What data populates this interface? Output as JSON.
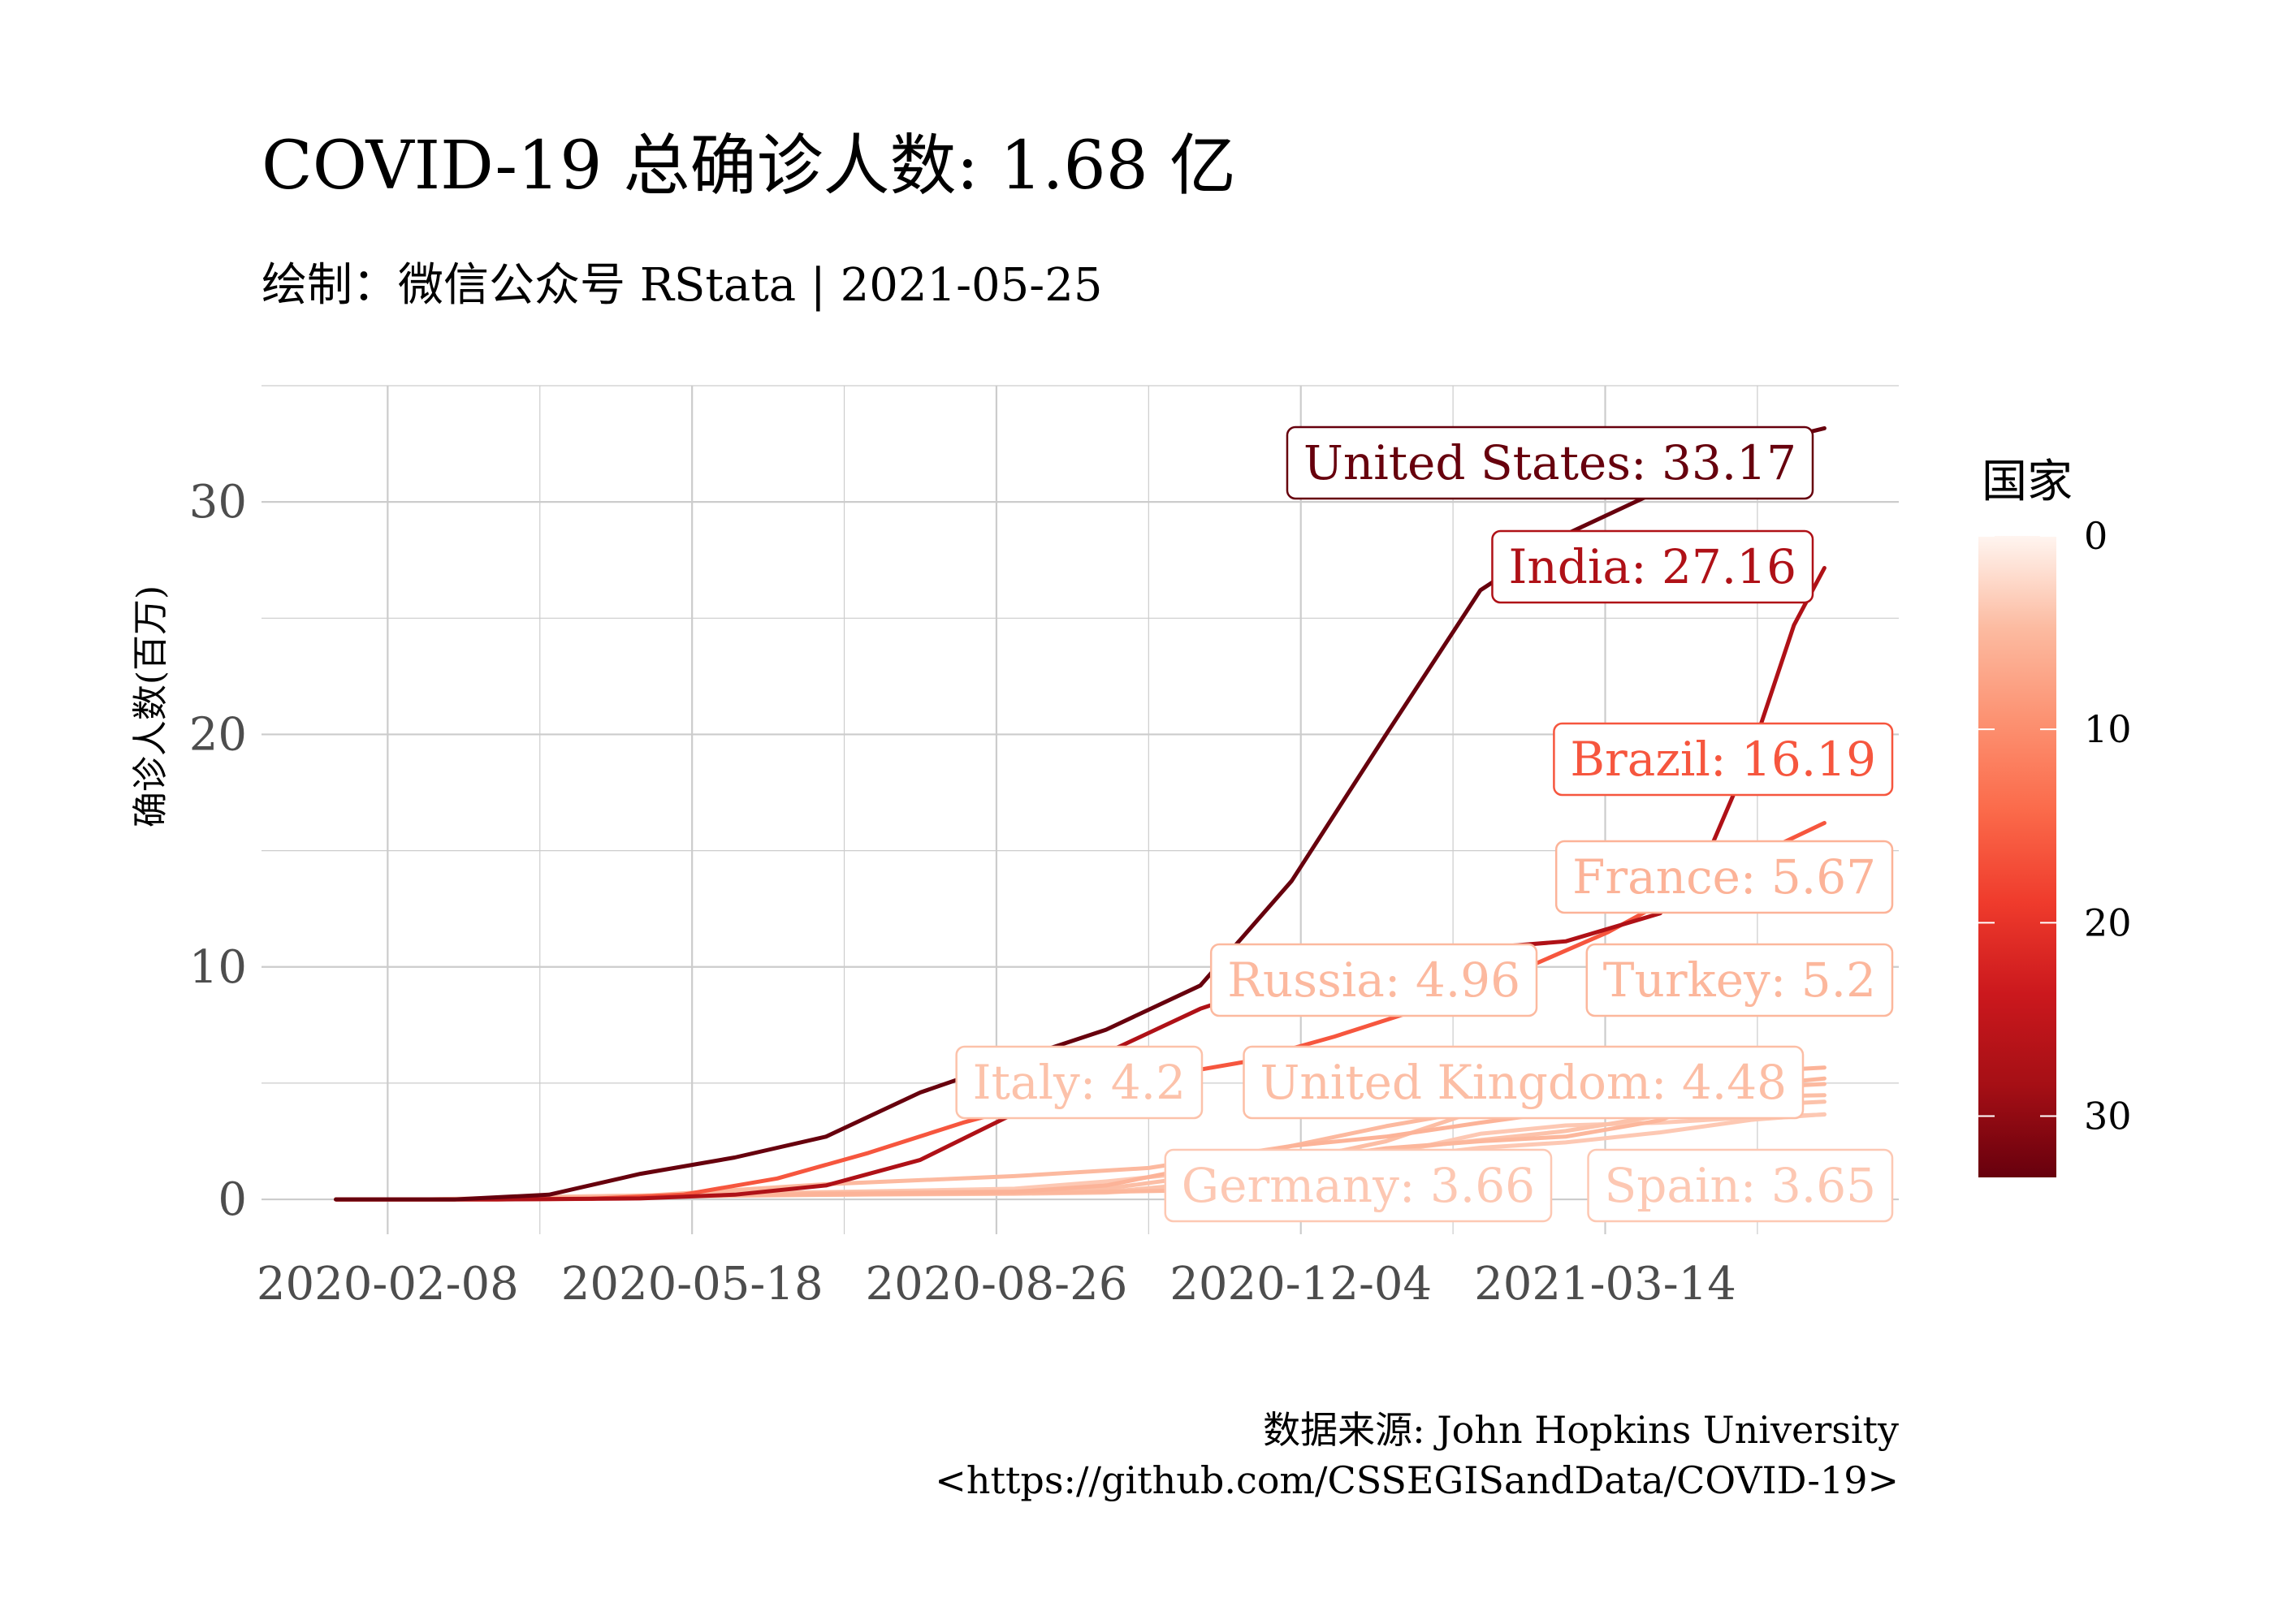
{
  "chart_data": {
    "type": "line",
    "title": "COVID-19 总确诊人数: 1.68 亿",
    "subtitle": "绘制：微信公众号 RStata | 2021-05-25",
    "xlabel": "",
    "ylabel": "确诊人数(百万)",
    "caption_line1": "数据来源: John Hopkins University",
    "caption_line2": "<https://github.com/CSSEGISandData/COVID-19>",
    "x_range": [
      "2020-01-22",
      "2021-05-25"
    ],
    "ylim": [
      -1.5,
      35
    ],
    "x_ticks": [
      "2020-02-08",
      "2020-05-18",
      "2020-08-26",
      "2020-12-04",
      "2021-03-14"
    ],
    "y_ticks": [
      0,
      10,
      20,
      30
    ],
    "grid": true,
    "legend": {
      "title": "国家",
      "position": "right",
      "type": "colorbar",
      "range": [
        0,
        33.17
      ],
      "ticks": [
        0,
        10,
        20,
        30
      ],
      "colors": [
        "#fff5f0",
        "#fcbba1",
        "#fc9272",
        "#fb6a4a",
        "#ef3b2c",
        "#cb181d",
        "#a50f15",
        "#67000d"
      ]
    },
    "series": [
      {
        "name": "United States",
        "label": "United States: 33.17",
        "final": 33.17,
        "label_pos": [
          1400000000.0,
          30.9
        ],
        "points": [
          [
            "2020-01-22",
            0
          ],
          [
            "2020-03-01",
            0.0001
          ],
          [
            "2020-04-01",
            0.2
          ],
          [
            "2020-05-01",
            1.1
          ],
          [
            "2020-06-01",
            1.8
          ],
          [
            "2020-07-01",
            2.7
          ],
          [
            "2020-08-01",
            4.6
          ],
          [
            "2020-09-01",
            6.0
          ],
          [
            "2020-10-01",
            7.3
          ],
          [
            "2020-11-01",
            9.2
          ],
          [
            "2020-12-01",
            13.7
          ],
          [
            "2021-01-01",
            20.0
          ],
          [
            "2021-02-01",
            26.2
          ],
          [
            "2021-03-01",
            28.6
          ],
          [
            "2021-04-01",
            30.5
          ],
          [
            "2021-05-01",
            32.4
          ],
          [
            "2021-05-25",
            33.17
          ]
        ]
      },
      {
        "name": "India",
        "label": "India: 27.16",
        "final": 27.16,
        "label_pos": [
          1400000000.0,
          26.6
        ],
        "points": [
          [
            "2020-01-22",
            0
          ],
          [
            "2020-03-15",
            0
          ],
          [
            "2020-05-01",
            0.04
          ],
          [
            "2020-06-01",
            0.2
          ],
          [
            "2020-07-01",
            0.6
          ],
          [
            "2020-08-01",
            1.7
          ],
          [
            "2020-09-01",
            3.7
          ],
          [
            "2020-10-01",
            6.3
          ],
          [
            "2020-11-01",
            8.2
          ],
          [
            "2020-12-01",
            9.5
          ],
          [
            "2021-01-01",
            10.3
          ],
          [
            "2021-02-01",
            10.8
          ],
          [
            "2021-03-01",
            11.1
          ],
          [
            "2021-04-01",
            12.3
          ],
          [
            "2021-04-15",
            14.3
          ],
          [
            "2021-05-01",
            19.2
          ],
          [
            "2021-05-15",
            24.7
          ],
          [
            "2021-05-25",
            27.16
          ]
        ]
      },
      {
        "name": "Brazil",
        "label": "Brazil: 16.19",
        "final": 16.19,
        "label_pos": [
          1400000000.0,
          18.5
        ],
        "points": [
          [
            "2020-01-22",
            0
          ],
          [
            "2020-03-15",
            0
          ],
          [
            "2020-04-15",
            0.03
          ],
          [
            "2020-05-15",
            0.2
          ],
          [
            "2020-06-15",
            0.9
          ],
          [
            "2020-07-15",
            2.0
          ],
          [
            "2020-08-15",
            3.3
          ],
          [
            "2020-09-15",
            4.4
          ],
          [
            "2020-10-15",
            5.2
          ],
          [
            "2020-11-15",
            5.9
          ],
          [
            "2020-12-15",
            7.0
          ],
          [
            "2021-01-15",
            8.3
          ],
          [
            "2021-02-15",
            9.9
          ],
          [
            "2021-03-15",
            11.5
          ],
          [
            "2021-04-15",
            13.7
          ],
          [
            "2021-05-25",
            16.19
          ]
        ]
      },
      {
        "name": "France",
        "label": "France: 5.67",
        "final": 5.67,
        "label_pos": [
          1400000000.0,
          13.5
        ],
        "points": [
          [
            "2020-01-22",
            0
          ],
          [
            "2020-03-01",
            0.0001
          ],
          [
            "2020-04-01",
            0.06
          ],
          [
            "2020-06-01",
            0.19
          ],
          [
            "2020-09-01",
            0.32
          ],
          [
            "2020-10-01",
            0.6
          ],
          [
            "2020-11-01",
            1.4
          ],
          [
            "2020-12-01",
            2.3
          ],
          [
            "2021-01-01",
            2.7
          ],
          [
            "2021-02-01",
            3.3
          ],
          [
            "2021-03-01",
            3.8
          ],
          [
            "2021-04-01",
            4.7
          ],
          [
            "2021-05-01",
            5.5
          ],
          [
            "2021-05-25",
            5.67
          ]
        ]
      },
      {
        "name": "Turkey",
        "label": "Turkey: 5.2",
        "final": 5.2,
        "label_pos": [
          1400000000.0,
          9.1
        ],
        "points": [
          [
            "2020-01-22",
            0
          ],
          [
            "2020-03-15",
            0
          ],
          [
            "2020-04-01",
            0.015
          ],
          [
            "2020-06-01",
            0.16
          ],
          [
            "2020-09-01",
            0.27
          ],
          [
            "2020-11-01",
            0.39
          ],
          [
            "2020-11-26",
            0.45
          ],
          [
            "2020-12-10",
            1.8
          ],
          [
            "2021-01-01",
            2.2
          ],
          [
            "2021-02-01",
            2.5
          ],
          [
            "2021-03-01",
            2.7
          ],
          [
            "2021-04-01",
            3.4
          ],
          [
            "2021-05-01",
            4.9
          ],
          [
            "2021-05-25",
            5.2
          ]
        ]
      },
      {
        "name": "Russia",
        "label": "Russia: 4.96",
        "final": 4.96,
        "label_pos": [
          1400000000.0,
          9.1
        ],
        "points": [
          [
            "2020-01-22",
            0
          ],
          [
            "2020-03-15",
            0
          ],
          [
            "2020-04-15",
            0.02
          ],
          [
            "2020-05-15",
            0.26
          ],
          [
            "2020-07-01",
            0.65
          ],
          [
            "2020-09-01",
            1.0
          ],
          [
            "2020-10-15",
            1.35
          ],
          [
            "2020-12-01",
            2.3
          ],
          [
            "2021-01-01",
            3.15
          ],
          [
            "2021-02-01",
            3.85
          ],
          [
            "2021-03-01",
            4.26
          ],
          [
            "2021-04-01",
            4.56
          ],
          [
            "2021-05-01",
            4.8
          ],
          [
            "2021-05-25",
            4.96
          ]
        ]
      },
      {
        "name": "United Kingdom",
        "label": "United Kingdom: 4.48",
        "final": 4.48,
        "label_pos": [
          1400000000.0,
          4.8
        ],
        "points": [
          [
            "2020-01-22",
            0
          ],
          [
            "2020-03-01",
            0.0001
          ],
          [
            "2020-04-01",
            0.03
          ],
          [
            "2020-06-01",
            0.28
          ],
          [
            "2020-09-01",
            0.34
          ],
          [
            "2020-10-01",
            0.46
          ],
          [
            "2020-11-01",
            1.0
          ],
          [
            "2020-12-01",
            1.65
          ],
          [
            "2021-01-01",
            2.5
          ],
          [
            "2021-02-01",
            3.85
          ],
          [
            "2021-03-01",
            4.18
          ],
          [
            "2021-04-01",
            4.36
          ],
          [
            "2021-05-01",
            4.42
          ],
          [
            "2021-05-25",
            4.48
          ]
        ]
      },
      {
        "name": "Italy",
        "label": "Italy: 4.2",
        "final": 4.2,
        "label_pos": [
          1400000000.0,
          4.8
        ],
        "points": [
          [
            "2020-01-22",
            0
          ],
          [
            "2020-02-20",
            0.0001
          ],
          [
            "2020-04-01",
            0.11
          ],
          [
            "2020-06-01",
            0.23
          ],
          [
            "2020-09-01",
            0.27
          ],
          [
            "2020-10-01",
            0.32
          ],
          [
            "2020-11-01",
            0.68
          ],
          [
            "2020-12-01",
            1.6
          ],
          [
            "2021-01-01",
            2.1
          ],
          [
            "2021-02-01",
            2.55
          ],
          [
            "2021-03-01",
            2.94
          ],
          [
            "2021-04-01",
            3.6
          ],
          [
            "2021-05-01",
            4.05
          ],
          [
            "2021-05-25",
            4.2
          ]
        ]
      },
      {
        "name": "Germany",
        "label": "Germany: 3.66",
        "final": 3.66,
        "label_pos": [
          1400000000.0,
          0.5
        ],
        "points": [
          [
            "2020-01-22",
            0
          ],
          [
            "2020-02-20",
            2e-05
          ],
          [
            "2020-04-01",
            0.07
          ],
          [
            "2020-06-01",
            0.18
          ],
          [
            "2020-09-01",
            0.24
          ],
          [
            "2020-10-01",
            0.29
          ],
          [
            "2020-11-01",
            0.53
          ],
          [
            "2020-12-01",
            1.07
          ],
          [
            "2021-01-01",
            1.76
          ],
          [
            "2021-02-01",
            2.22
          ],
          [
            "2021-03-01",
            2.45
          ],
          [
            "2021-04-01",
            2.88
          ],
          [
            "2021-05-01",
            3.42
          ],
          [
            "2021-05-25",
            3.66
          ]
        ]
      },
      {
        "name": "Spain",
        "label": "Spain: 3.65",
        "final": 3.65,
        "label_pos": [
          1400000000.0,
          0.5
        ],
        "points": [
          [
            "2020-01-22",
            0
          ],
          [
            "2020-02-25",
            1e-05
          ],
          [
            "2020-04-01",
            0.1
          ],
          [
            "2020-06-01",
            0.24
          ],
          [
            "2020-09-01",
            0.46
          ],
          [
            "2020-10-01",
            0.77
          ],
          [
            "2020-11-01",
            1.18
          ],
          [
            "2020-12-01",
            1.65
          ],
          [
            "2021-01-01",
            1.93
          ],
          [
            "2021-02-01",
            2.82
          ],
          [
            "2021-03-01",
            3.18
          ],
          [
            "2021-04-01",
            3.3
          ],
          [
            "2021-05-01",
            3.53
          ],
          [
            "2021-05-25",
            3.65
          ]
        ]
      }
    ]
  }
}
